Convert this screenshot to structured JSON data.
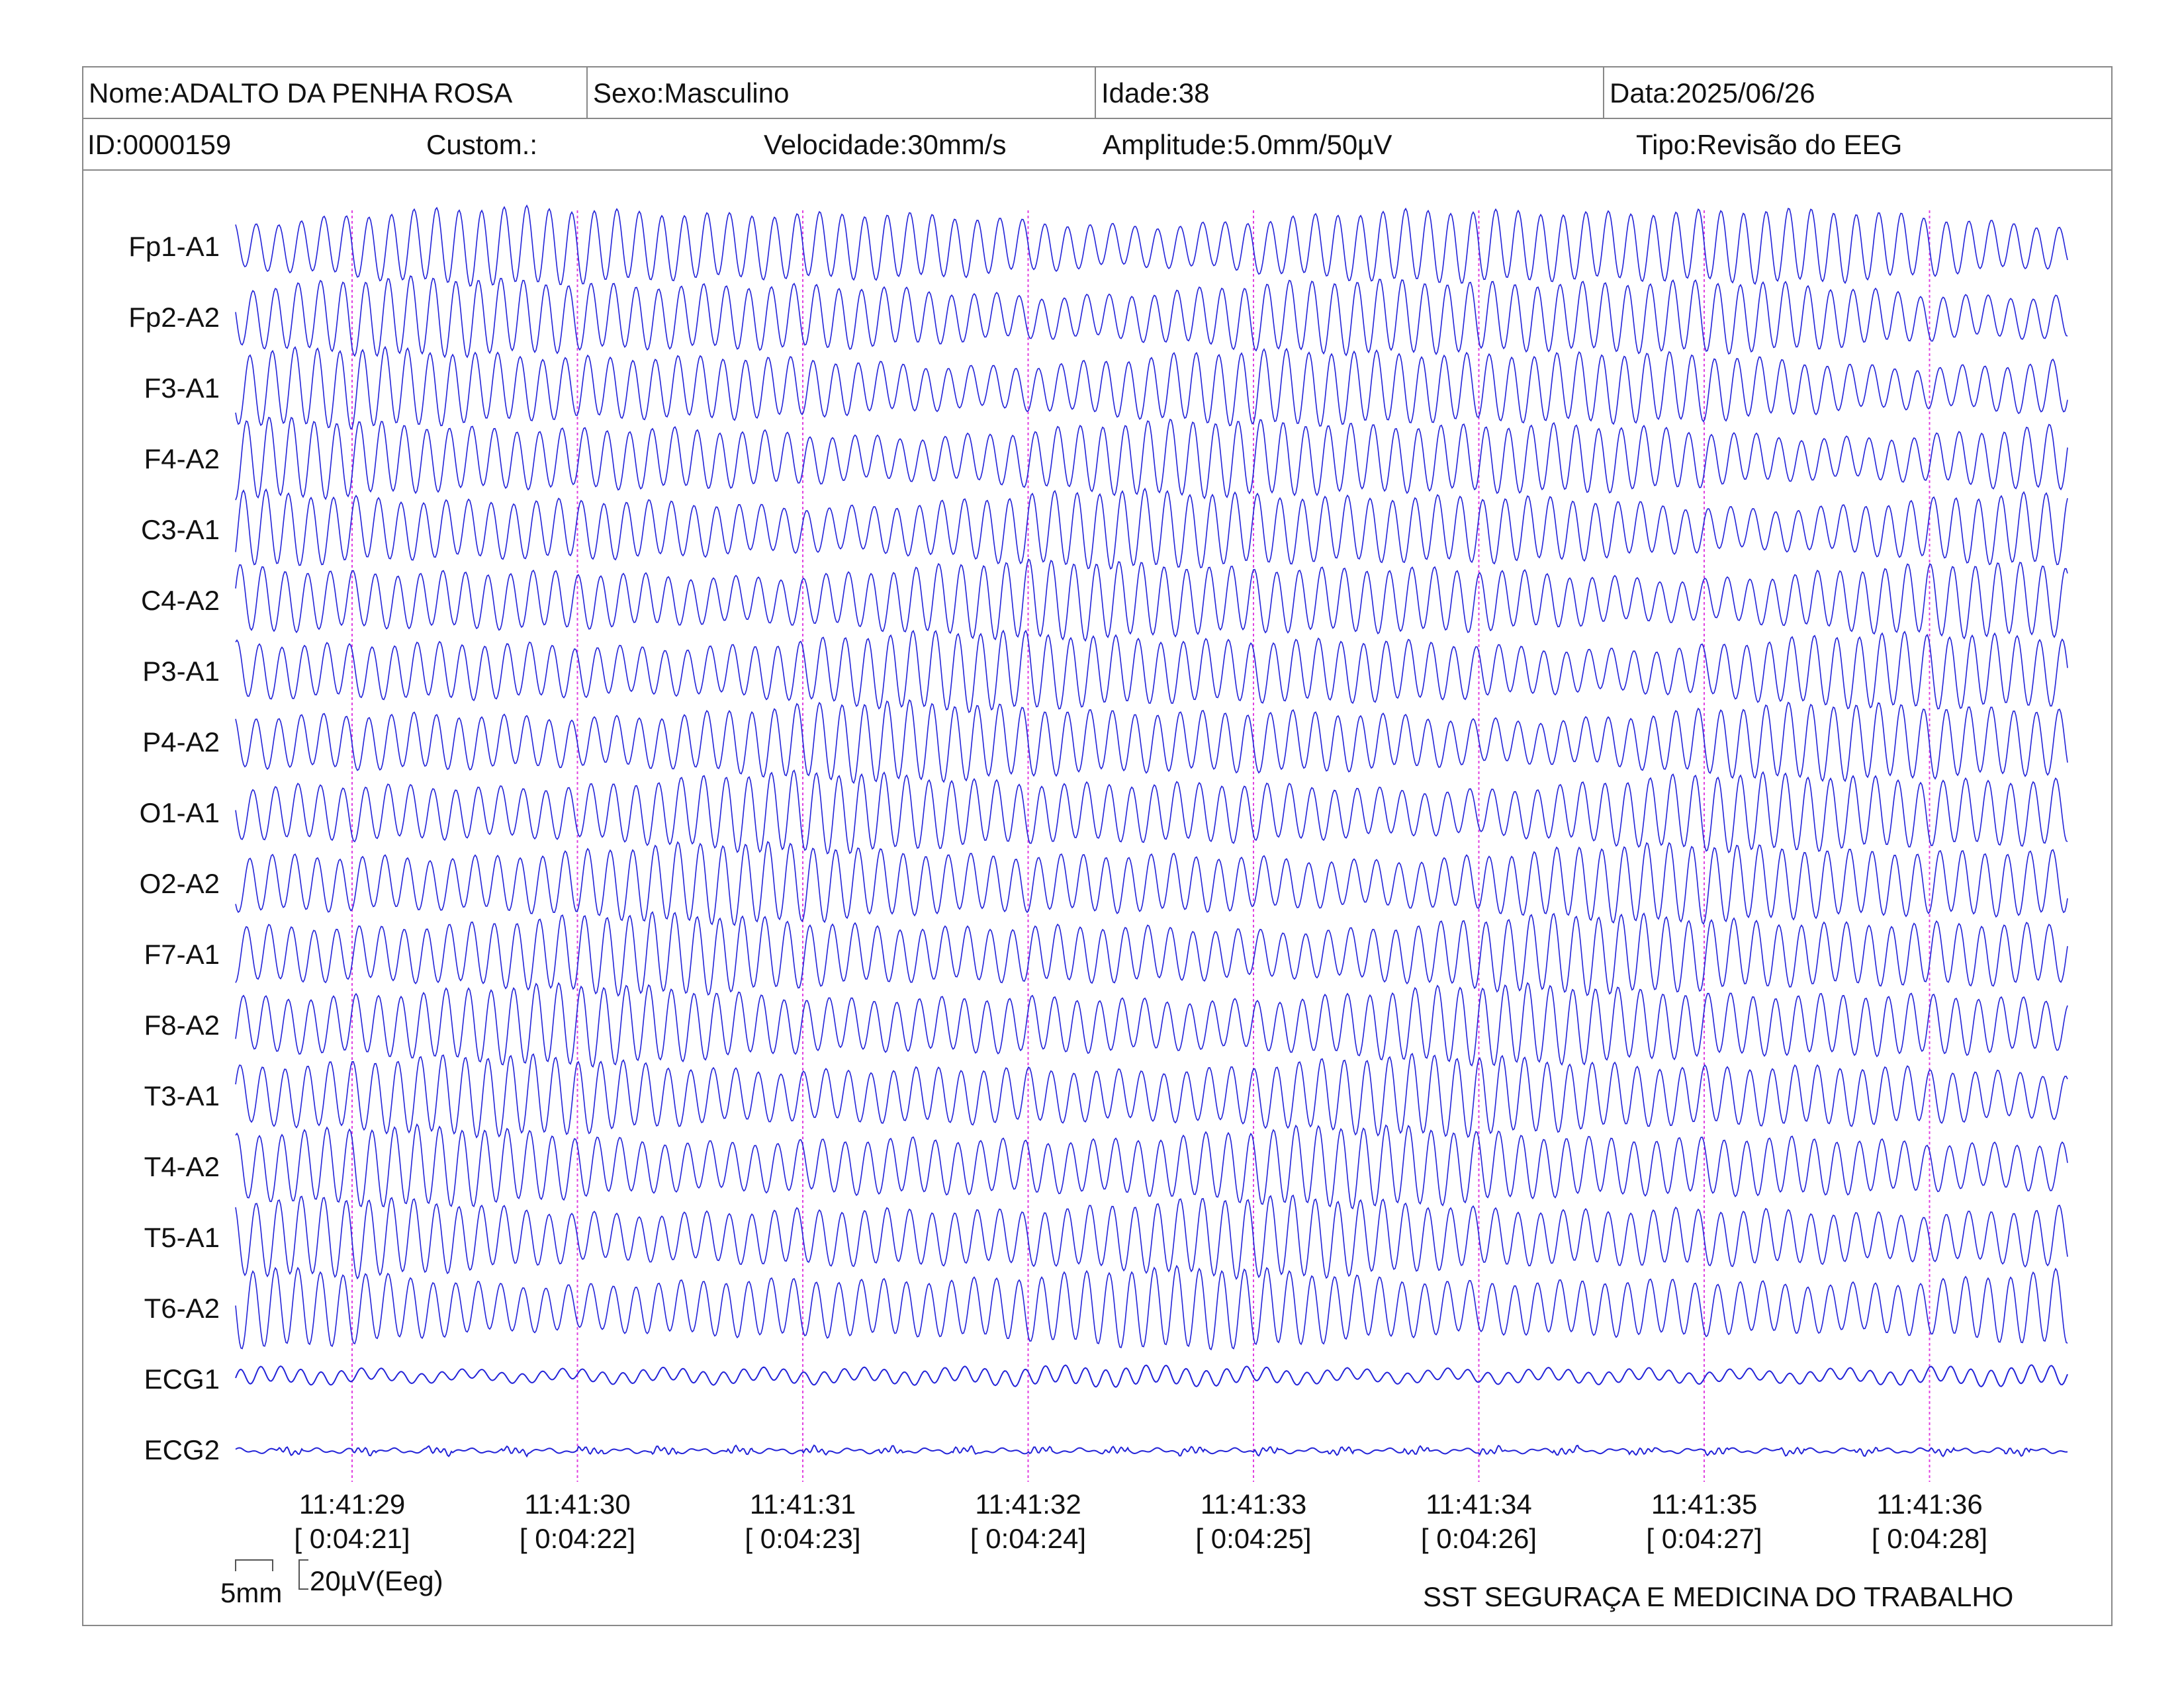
{
  "header": {
    "nome": "Nome:ADALTO DA PENHA ROSA",
    "sexo": "Sexo:Masculino",
    "idade": "Idade:38",
    "data": "Data:2025/06/26",
    "id": "ID:0000159",
    "custom": "Custom.:",
    "velocidade": "Velocidade:30mm/s",
    "amplitude": "Amplitude:5.0mm/50µV",
    "tipo": "Tipo:Revisão do EEG"
  },
  "colors": {
    "trace": "#2323d8",
    "marker": "#e040e0",
    "border": "#888888"
  },
  "chart_data": {
    "type": "line",
    "channels": [
      "Fp1-A1",
      "Fp2-A2",
      "F3-A1",
      "F4-A2",
      "C3-A1",
      "C4-A2",
      "P3-A1",
      "P4-A2",
      "O1-A1",
      "O2-A2",
      "F7-A1",
      "F8-A2",
      "T3-A1",
      "T4-A2",
      "T5-A1",
      "T6-A2",
      "ECG1",
      "ECG2"
    ],
    "time_markers": [
      {
        "clock": "11:41:29",
        "elapsed": "[ 0:04:21]"
      },
      {
        "clock": "11:41:30",
        "elapsed": "[ 0:04:22]"
      },
      {
        "clock": "11:41:31",
        "elapsed": "[ 0:04:23]"
      },
      {
        "clock": "11:41:32",
        "elapsed": "[ 0:04:24]"
      },
      {
        "clock": "11:41:33",
        "elapsed": "[ 0:04:25]"
      },
      {
        "clock": "11:41:34",
        "elapsed": "[ 0:04:26]"
      },
      {
        "clock": "11:41:35",
        "elapsed": "[ 0:04:27]"
      },
      {
        "clock": "11:41:36",
        "elapsed": "[ 0:04:28]"
      }
    ],
    "eeg_frequency_hz": 10,
    "duration_s": 8.1
  },
  "scale": {
    "mm_label": "5mm",
    "uv_label": "20µV(Eeg)"
  },
  "footer": {
    "company": "SST SEGURAÇA E MEDICINA DO TRABALHO"
  }
}
